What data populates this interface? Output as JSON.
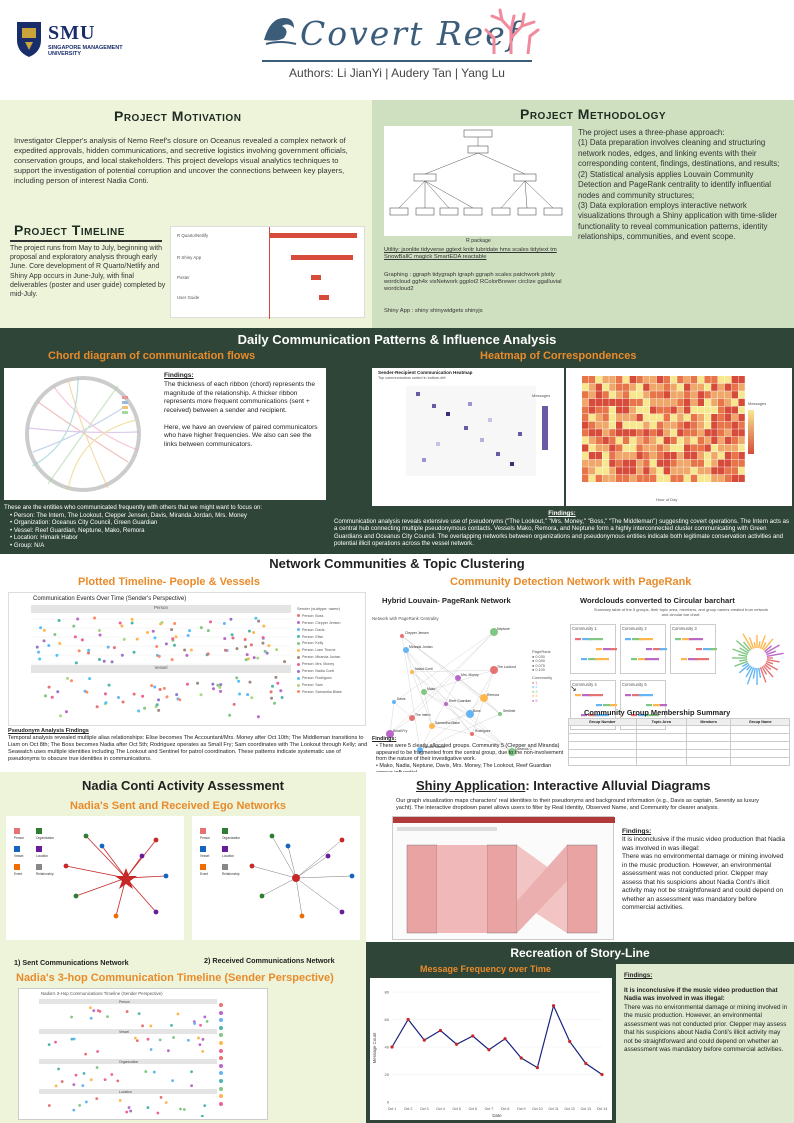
{
  "header": {
    "logo_text": "SMU",
    "logo_sub": "SINGAPORE MANAGEMENT\nUNIVERSITY",
    "title": "Covert Reef",
    "authors": "Authors: Li JianYi  | Audery Tan | Yang Lu"
  },
  "motivation": {
    "title": "Project Motivation",
    "body": "Investigator Clepper's analysis of Nemo Reef's closure on Oceanus revealed a complex network of expedited approvals, hidden communications, and secretive logistics involving government officials, conservation groups, and local stakeholders. This project develops visual analytics techniques to support the investigation of potential corruption and uncover the connections between key players, including person of interest Nadia Conti."
  },
  "timeline": {
    "title": "Project Timeline",
    "body": "The project runs from May to July, beginning with proposal and exploratory analysis through early June. Core development of R Quarto/Netlify and Shiny App occurs in June-July, with final deliverables (poster and user guide) completed by mid-July.",
    "rows": [
      "R Quarto/Netlify",
      "R Shiny App",
      "Poster",
      "User Guide"
    ]
  },
  "methodology": {
    "title": "Project Methodology",
    "body": "The project uses a three-phase approach:\n(1) Data preparation involves cleaning and structuring network nodes, edges, and linking events with their corresponding content, findings, destinations, and results;\n(2) Statistical analysis applies Louvain Community Detection and PageRank centrality to identify influential nodes and community structures;\n(3) Data exploration employs interactive network visualizations through a Shiny application with time-slider functionality to reveal communication patterns, identity relationships, communities, and event scope.",
    "rpackage": "R package",
    "utility": "Utility: jsonlite tidyverse ggtext knitr lubridate hms scales tidytext  tm SnowBallC  magick SmartEDA reactable",
    "graphing": "Graphing : ggraph  tidygraph  igraph  ggraph scales  patchwork plotly wordcloud ggh4x  visNetwork  ggplot2 RColorBrewer circlize ggalluvial  wordcloud2",
    "shiny": "Shiny App : shiny shinywidgets shinyjs"
  },
  "daily": {
    "title": "Daily Communication Patterns & Influence Analysis",
    "chord_title": "Chord diagram of communication flows",
    "heat_title": "Heatmap of Correspondences",
    "findings_label": "Findings:",
    "chord_findings": "The thickness of each ribbon (chord) represents the magnitude of the relationship. A thicker ribbon represents more frequent communications (sent + received) between a sender and recipient.\n\nHere, we have an overview of paired communicators who have higher frequencies. We also can see the links between communicators.",
    "entities_intro": "These are the entities who communicated frequently with others that we might want to focus on:",
    "entities": [
      "Person: The Intern, The Lookout, Clepper Jensen, Davis, Miranda Jordan, Mrs. Money",
      "Organization: Oceanus City Council, Green Guardian",
      "Vessel: Reef Guardian, Neptune, Mako, Remora",
      "Location: Himark Habor",
      "Group: N/A"
    ],
    "heat_findings_label": "Findings:",
    "heat_findings": "Communication analysis reveals extensive use of pseudonyms (\"The Lookout,\" \"Mrs. Money,\" \"Boss,\" \"The Middleman\") suggesting covert operations. The Intern acts as a central hub connecting multiple pseudonymous contacts. Vessels Mako, Remora, and Neptune form a highly interconnected cluster communicating with Green Guardians and Oceanus City Council. The overlapping networks between organizations and pseudonymous entities indicate both legitimate conservation activities and potential illicit operations across the vessel network.",
    "heat_small_title": "Sender-Recipient Communication Heatmap",
    "heat_small_sub": "Top communicators sorted in bottom-left",
    "heat_legend": "Messages",
    "heat_xlabel": "Hour of Day"
  },
  "network": {
    "title": "Network Communities & Topic Clustering",
    "timeline_title": "Plotted Timeline- People & Vessels",
    "comm_title": "Community Detection Network with PageRank",
    "chart_title": "Communication Events Over Time (Sender's Perspective)",
    "legend_title": "Sender (subtype: name)",
    "legend_items": [
      "Person: Boss",
      "Person: Clepper Jensen",
      "Person: Davis",
      "Person: Elise",
      "Person: Kelly",
      "Person: Liam Thorne",
      "Person: Miranda Jordan",
      "Person: Mrs. Money",
      "Person: Nadia Conti",
      "Person: Rodriguez",
      "Person: Sam",
      "Person: Samantha Blake"
    ],
    "facet_labels": [
      "Person",
      "Vessel"
    ],
    "pseudo_label": "Pseudonym Analysis Findings",
    "pseudo_body": "Temporal analysis revealed multiple alias relationships: Elise becomes The Accountant/Mrs. Money after Oct 10th; The Middleman transitions to Liam on Oct 8th; The Boss becomes Nadia after Oct 5th; Rodriguez operates as Small Fry; Sam coordinates with The Lookout through Kelly; and Seawatch uses multiple identities including The Lookout and Sentinel for patrol coordination. These patterns indicate systematic use of pseudonyms to obscure true identities in communications.",
    "hybrid_title": "Hybrid Louvain- PageRank Network",
    "hybrid_sub": "Network with PageRank Centrality",
    "pagerank_label": "PageRank",
    "pagerank_vals": [
      "0.030",
      "0.050",
      "0.075",
      "0.100"
    ],
    "community_label": "Community",
    "community_vals": [
      "1",
      "2",
      "3",
      "4",
      "5"
    ],
    "word_title": "Wordclouds converted to Circular barchart",
    "word_sub": "Summary table of the 5 groups, their topic area, members, and group names created from network and circular bar chart.",
    "communities": [
      "Community 1",
      "Community 2",
      "Community 3",
      "Community 4",
      "Community 5"
    ],
    "membership_title": "Community Group Membership Summary",
    "membership_head": [
      "Group Number",
      "Topic Area",
      "Members",
      "Group Name"
    ],
    "findings_label": "Findings:",
    "findings": [
      "There were 5 clearly allocated groups. Community 5 (Clepper and Miranda) appeared to be fragmented from the central group, due to the non-involvement from the nature of their investigative work.",
      "Mako, Nadia, Neptune, Davis, Mrs. Money, The Lookout, Reef Guardian appear influential."
    ],
    "node_labels": [
      "Clepper Jensen",
      "Miranda Jordan",
      "Neptune",
      "Nadia Conti",
      "Mrs. Money",
      "The Lookout",
      "Davis",
      "Mako",
      "Remora",
      "Reef Guardian",
      "The Intern",
      "Boss",
      "Sentinel",
      "Samantha Blake",
      "Small Fry",
      "Rodriguez",
      "Himark Harbor",
      "Oceanus City Council"
    ]
  },
  "nadia": {
    "title": "Nadia Conti Activity Assessment",
    "ego_title": "Nadia's Sent and Received Ego Networks",
    "sent_caption": "1) Sent Communications Network",
    "recv_caption": "2) Received Communications Network",
    "hop_title": "Nadia's 3-hop Communication Timeline (Sender Perspective)",
    "hop_chart_title": "Nadia's 3-Hop Communications Timeline (Sender Perspective)",
    "legend_types": [
      "Person",
      "Organization",
      "Vessel",
      "Location",
      "Event",
      "Relationship"
    ],
    "facets": [
      "Person",
      "Vessel",
      "Organization",
      "Location"
    ]
  },
  "shiny": {
    "title_link": "Shiny Application",
    "title_rest": ": Interactive Alluvial Diagrams",
    "desc": "Our graph visualization maps characters' real identities to their pseudonyms and background information (e.g., Davis as captain, Serenity as luxury yacht). The interactive dropdown panel allows users to filter by Real Identity, Observed Name, and Community for clearer analysis.",
    "findings_label": "Findings:",
    "findings": "It is inconclusive if the  music video production that Nadia was involved in was illegal:\nThere was no environmental damage or mining involved in the music production. However, an environmental assessment was not conducted prior. Clepper may assess that his suspicions about Nadia Conti's illicit activity may not be straightforward and could depend on whether an assessment was mandatory before commercial activities."
  },
  "story": {
    "title": "Recreation of Story-Line",
    "chart_title": "Message Frequency over Time",
    "findings_label": "Findings:",
    "findings_bold": "It is inconclusive if the  music video production that Nadia was involved in was illegal:",
    "findings": "There was no environmental damage or mining involved in the music production. However, an environmental assessment was not conducted prior. Clepper may assess that his suspicions about Nadia Conti's illicit activity may not be straightforward and could depend on whether an assessment was mandatory before commercial activities.",
    "ylabel": "Message Count",
    "xlabel": "Date"
  },
  "colors": {
    "dark_green": "#2f4538",
    "light_green": "#eef4da",
    "mid_green": "#cfe0c0",
    "orange": "#e98b2a",
    "bar_red": "#d64b3a",
    "title_blue": "#3b5d7a"
  },
  "chart_data": [
    {
      "type": "line",
      "title": "Message Frequency over Time",
      "xlabel": "Date",
      "ylabel": "Message Count",
      "x": [
        "Oct 1",
        "Oct 2",
        "Oct 3",
        "Oct 4",
        "Oct 5",
        "Oct 6",
        "Oct 7",
        "Oct 8",
        "Oct 9",
        "Oct 10",
        "Oct 11",
        "Oct 12",
        "Oct 13",
        "Oct 14"
      ],
      "values": [
        40,
        60,
        45,
        52,
        42,
        48,
        38,
        46,
        32,
        25,
        70,
        44,
        28,
        20
      ],
      "ylim": [
        0,
        80
      ]
    }
  ]
}
